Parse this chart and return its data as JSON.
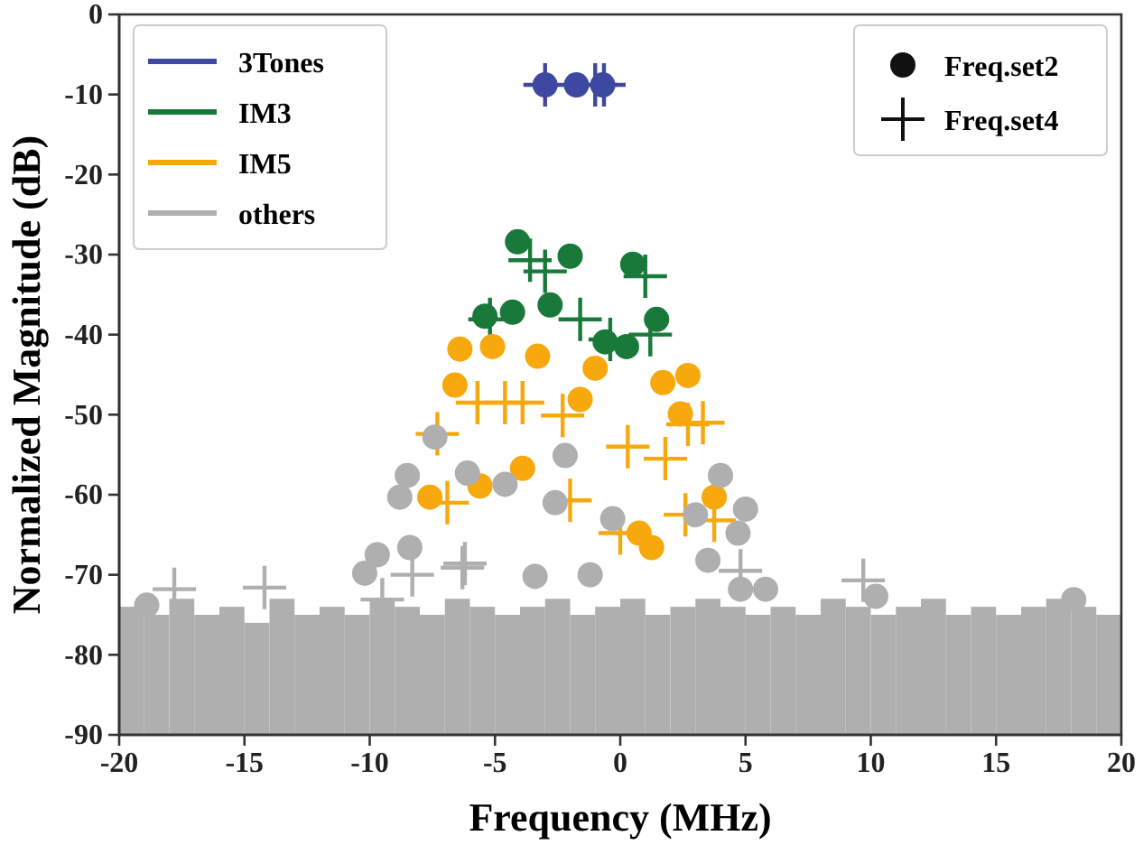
{
  "chart_data": {
    "type": "scatter",
    "xlabel": "Frequency (MHz)",
    "ylabel": "Normalized Magnitude (dB)",
    "xlim": [
      -20,
      20
    ],
    "xticks": [
      -20,
      -15,
      -10,
      -5,
      0,
      5,
      10,
      15,
      20
    ],
    "ylim": [
      -90,
      0
    ],
    "yticks": [
      0,
      -10,
      -20,
      -30,
      -40,
      -50,
      -60,
      -70,
      -80,
      -90
    ],
    "legend": "top left",
    "grid": false,
    "annotations": [
      "Freq.set2",
      "Freq.set4"
    ],
    "series": [
      {
        "type": "bar",
        "color": "#b0afaf",
        "x": [
          -19.5,
          -18.5,
          -17.5,
          -16.5,
          -15.5,
          -14.5,
          -13.5,
          -12.5,
          -11.5,
          -10.5,
          -9.5,
          -8.5,
          -7.5,
          -6.5,
          -5.5,
          -4.5,
          -3.5,
          -2.5,
          -1.5,
          -0.5,
          0.5,
          1.5,
          2.5,
          3.5,
          4.5,
          5.5,
          6.5,
          7.5,
          8.5,
          9.5,
          10.5,
          11.5,
          12.5,
          13.5,
          14.5,
          15.5,
          16.5,
          17.5,
          18.5,
          19.5
        ],
        "base": [
          -90,
          -90,
          -90,
          -90,
          -90,
          -90,
          -90,
          -90,
          -90,
          -90,
          -90,
          -90,
          -90,
          -90,
          -90,
          -90,
          -90,
          -90,
          -90,
          -90,
          -90,
          -90,
          -90,
          -90,
          -90,
          -90,
          -90,
          -90,
          -90,
          -90,
          -90,
          -90,
          -90,
          -90,
          -90,
          -90,
          -90,
          -90,
          -90,
          -90
        ],
        "values": [
          16,
          15,
          17,
          15,
          16,
          14,
          17,
          15,
          16,
          15,
          17,
          16,
          15,
          17,
          16,
          15,
          16,
          17,
          15,
          16,
          17,
          15,
          16,
          17,
          16,
          15,
          16,
          15,
          17,
          16,
          15,
          16,
          17,
          15,
          16,
          15,
          16,
          17,
          16,
          15
        ]
      },
      {
        "name": "3Tones",
        "marker": "circle",
        "color": "#3f48a0",
        "x": [
          -3.0,
          -1.75,
          -0.7
        ],
        "values": [
          -8.8,
          -8.8,
          -8.8
        ]
      },
      {
        "marker": "cross",
        "color": "#3f48a0",
        "x": [
          -3.0,
          -1.0,
          -0.65
        ],
        "values": [
          -8.8,
          -8.8,
          -8.8
        ]
      },
      {
        "name": "IM3",
        "marker": "circle",
        "color": "#19793a",
        "x": [
          -4.1,
          -2.0,
          0.5,
          -2.8,
          -4.3,
          -5.4,
          -0.6,
          0.25,
          1.45
        ],
        "values": [
          -28.4,
          -30.2,
          -31.2,
          -36.3,
          -37.2,
          -37.7,
          -40.9,
          -41.5,
          -38.1
        ]
      },
      {
        "marker": "cross",
        "color": "#19793a",
        "x": [
          -3.6,
          -3.0,
          1.0,
          -1.6,
          -0.4,
          1.2,
          -5.2
        ],
        "values": [
          -30.7,
          -32.1,
          -32.7,
          -38.1,
          -40.6,
          -40.0,
          -38.1
        ]
      },
      {
        "name": "IM5",
        "marker": "circle",
        "color": "#f7a80d",
        "x": [
          -6.4,
          -5.1,
          -3.3,
          -6.6,
          -1.0,
          -1.6,
          1.7,
          2.7,
          2.4,
          -3.9,
          -5.6,
          -7.6,
          3.75,
          0.75,
          1.25
        ],
        "values": [
          -41.8,
          -41.5,
          -42.7,
          -46.3,
          -44.2,
          -48.1,
          -46.0,
          -45.1,
          -49.9,
          -56.7,
          -58.9,
          -60.3,
          -60.3,
          -64.8,
          -66.6
        ]
      },
      {
        "marker": "cross",
        "color": "#f7a80d",
        "x": [
          -5.7,
          -4.6,
          -3.9,
          -2.3,
          3.3,
          2.7,
          -7.3,
          0.3,
          1.8,
          -2.0,
          -6.9,
          2.6,
          3.75,
          0.0
        ],
        "values": [
          -48.5,
          -48.5,
          -48.5,
          -50.1,
          -51.0,
          -51.2,
          -52.4,
          -54.0,
          -55.5,
          -60.7,
          -61.0,
          -62.5,
          -63.2,
          -64.8
        ]
      },
      {
        "name": "others",
        "marker": "circle",
        "color": "#b0afaf",
        "x": [
          -7.4,
          -2.2,
          4.0,
          -8.5,
          -6.1,
          -4.6,
          -8.8,
          -2.6,
          5.0,
          3.0,
          -0.3,
          4.7,
          -8.4,
          -9.7,
          -10.2,
          3.5,
          -3.4,
          -1.2,
          4.8,
          5.8,
          10.2,
          18.1,
          -18.9
        ],
        "values": [
          -52.8,
          -55.1,
          -57.6,
          -57.6,
          -57.3,
          -58.7,
          -60.3,
          -61.0,
          -61.8,
          -62.5,
          -63.0,
          -64.8,
          -66.6,
          -67.5,
          -69.8,
          -68.2,
          -70.2,
          -70.0,
          -71.8,
          -71.8,
          -72.7,
          -73.1,
          -73.8
        ]
      },
      {
        "marker": "cross",
        "color": "#b0afaf",
        "x": [
          -17.8,
          -14.2,
          -6.3,
          -8.3,
          4.8,
          9.7,
          -9.5,
          -6.2
        ],
        "values": [
          -71.8,
          -71.6,
          -69.1,
          -70.0,
          -69.5,
          -70.7,
          -73.1,
          -68.6
        ]
      }
    ]
  }
}
